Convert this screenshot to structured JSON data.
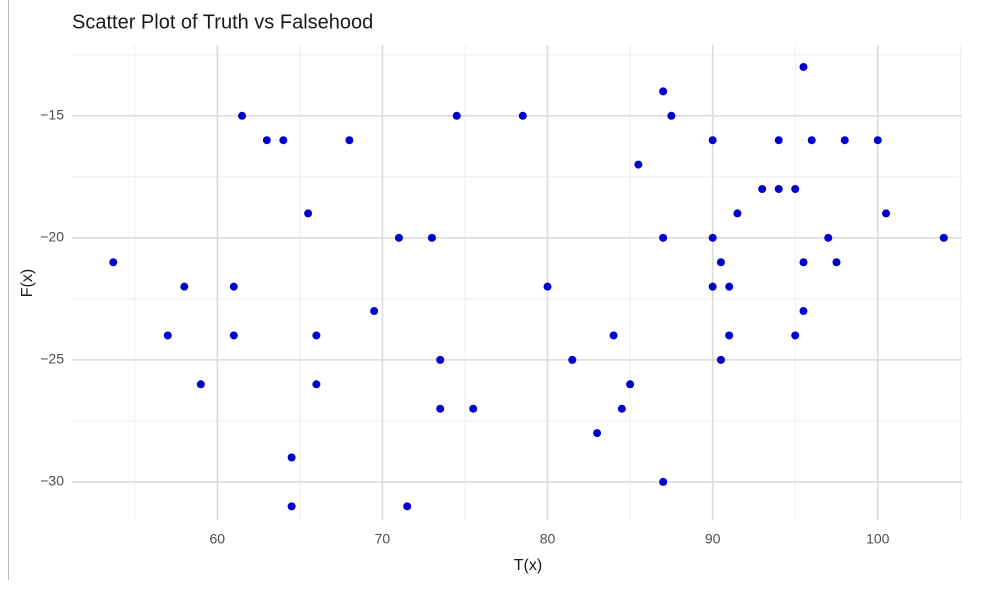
{
  "chart_data": {
    "type": "scatter",
    "title": "Scatter Plot of Truth vs Falsehood",
    "x_label": "T(x)",
    "y_label": "F(x)",
    "series": [
      {
        "color": "#0000cd",
        "x": [
          53.7,
          57,
          58,
          59,
          61,
          61,
          61.5,
          63,
          64,
          64.5,
          64.5,
          65.5,
          66,
          66,
          68,
          69.5,
          71,
          71.5,
          73,
          73.5,
          73.5,
          74.5,
          75.5,
          78.5,
          80,
          81.5,
          83,
          84,
          84.5,
          85,
          85.5,
          87,
          87,
          87,
          87.5,
          90,
          90,
          90,
          90.5,
          90.5,
          91,
          91,
          91.5,
          93,
          94,
          94,
          95,
          95,
          95.5,
          95.5,
          95.5,
          96,
          97,
          97.5,
          98,
          100,
          100.5,
          104
        ],
        "values": [
          -21,
          -24,
          -22,
          -26,
          -22,
          -24,
          -15,
          -16,
          -16,
          -29,
          -31,
          -19,
          -24,
          -26,
          -16,
          -23,
          -20,
          -31,
          -20,
          -25,
          -27,
          -15,
          -27,
          -15,
          -22,
          -25,
          -28,
          -24,
          -27,
          -26,
          -17,
          -14,
          -20,
          -30,
          -15,
          -16,
          -20,
          -22,
          -21,
          -25,
          -22,
          -24,
          -19,
          -18,
          -16,
          -18,
          -18,
          -24,
          -13,
          -21,
          -23,
          -16,
          -20,
          -21,
          -16,
          -16,
          -19,
          -20
        ]
      }
    ],
    "xlim": [
      51.2,
      105.1
    ],
    "ylim": [
      -31.56,
      -12.1
    ],
    "xticks": [
      60,
      70,
      80,
      90,
      100
    ],
    "yticks": [
      {
        "value": -30,
        "label": "−30"
      },
      {
        "value": -25,
        "label": "−25"
      },
      {
        "value": -20,
        "label": "−20"
      },
      {
        "value": -15,
        "label": "−15"
      }
    ],
    "x_minor_ticks": [
      55,
      65,
      75,
      85,
      95,
      105
    ],
    "y_minor_ticks": [
      -27.5,
      -22.5,
      -17.5,
      -12.5
    ],
    "grid": true
  }
}
